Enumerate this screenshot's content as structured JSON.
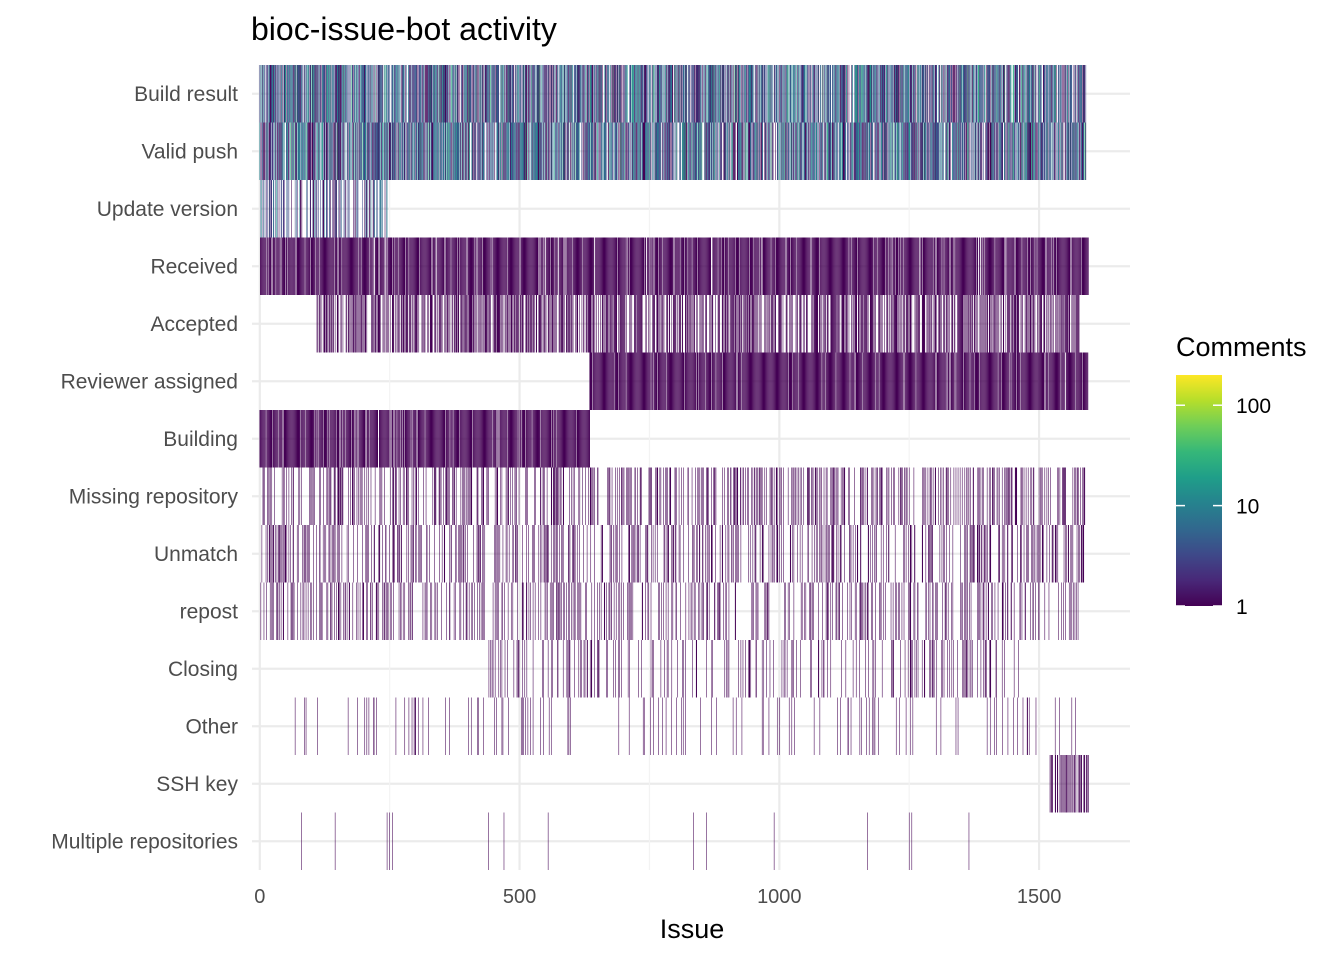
{
  "chart_data": {
    "type": "heatmap",
    "title": "bioc-issue-bot activity",
    "xlabel": "Issue",
    "ylabel": "",
    "xlim": [
      -15,
      1675
    ],
    "x_ticks": [
      0,
      500,
      1000,
      1500
    ],
    "categories": [
      "Build result",
      "Valid push",
      "Update version",
      "Received",
      "Accepted",
      "Reviewer assigned",
      "Building",
      "Missing repository",
      "Unmatch",
      "repost",
      "Closing",
      "Other",
      "SSH key",
      "Multiple repositories"
    ],
    "color_scale": {
      "name": "Comments",
      "scale": "log10",
      "ticks": [
        1,
        10,
        100
      ],
      "range": [
        1,
        200
      ],
      "palette": [
        "#440154",
        "#482878",
        "#3e4989",
        "#31688e",
        "#26828e",
        "#1f9e89",
        "#35b779",
        "#6ece58",
        "#b5de2b",
        "#fde725"
      ]
    },
    "rows": [
      {
        "label": "Build result",
        "ranges": [
          [
            0,
            1590
          ]
        ],
        "density": 0.8,
        "values": "1-30"
      },
      {
        "label": "Valid push",
        "ranges": [
          [
            0,
            1590
          ]
        ],
        "density": 0.8,
        "values": "1-30"
      },
      {
        "label": "Update version",
        "ranges": [
          [
            0,
            245
          ]
        ],
        "density": 0.45,
        "values": "1-10"
      },
      {
        "label": "Received",
        "ranges": [
          [
            0,
            1595
          ]
        ],
        "density": 0.9,
        "values": "1"
      },
      {
        "label": "Accepted",
        "ranges": [
          [
            110,
            1580
          ]
        ],
        "density": 0.55,
        "values": "1"
      },
      {
        "label": "Reviewer assigned",
        "ranges": [
          [
            635,
            1595
          ]
        ],
        "density": 0.92,
        "values": "1"
      },
      {
        "label": "Building",
        "ranges": [
          [
            0,
            635
          ]
        ],
        "density": 0.92,
        "values": "1"
      },
      {
        "label": "Missing repository",
        "ranges": [
          [
            0,
            1590
          ]
        ],
        "density": 0.3,
        "values": "1"
      },
      {
        "label": "Unmatch",
        "ranges": [
          [
            0,
            1590
          ]
        ],
        "density": 0.28,
        "values": "1"
      },
      {
        "label": "repost",
        "ranges": [
          [
            0,
            1590
          ]
        ],
        "density": 0.22,
        "values": "1"
      },
      {
        "label": "Closing",
        "ranges": [
          [
            440,
            1470
          ]
        ],
        "density": 0.2,
        "values": "1"
      },
      {
        "label": "Other",
        "ranges": [
          [
            30,
            1580
          ]
        ],
        "density": 0.06,
        "values": "1"
      },
      {
        "label": "SSH key",
        "ranges": [
          [
            1520,
            1595
          ]
        ],
        "density": 0.45,
        "values": "1"
      },
      {
        "label": "Multiple repositories",
        "ranges": [],
        "density": 0,
        "values": "1",
        "issues": [
          80,
          145,
          245,
          250,
          255,
          440,
          470,
          555,
          835,
          860,
          990,
          1170,
          1250,
          1255,
          1365
        ]
      }
    ]
  }
}
